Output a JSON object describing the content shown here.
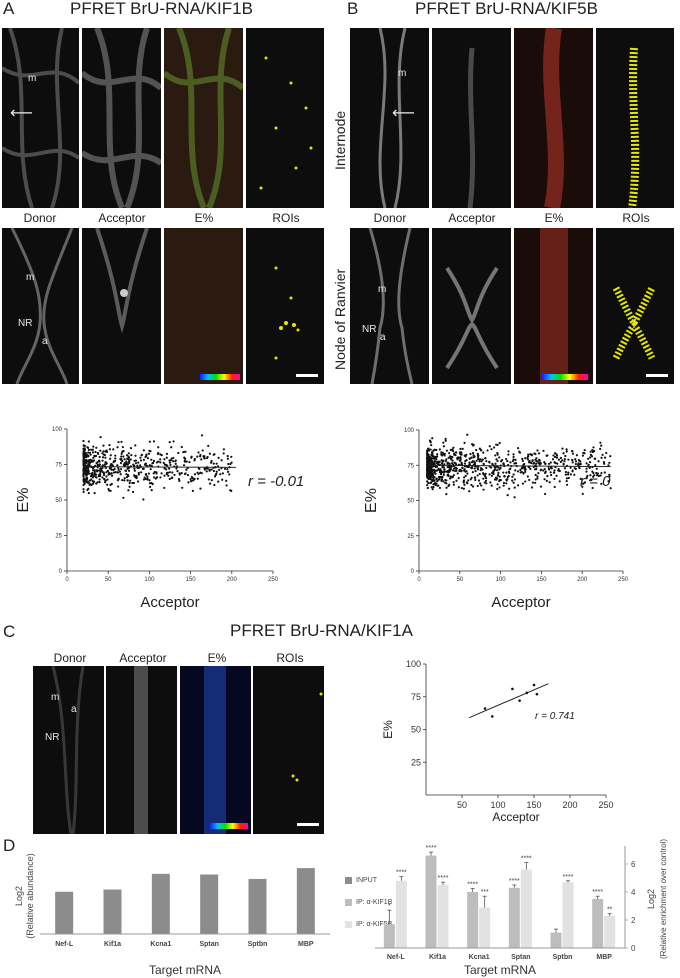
{
  "panels": {
    "A": {
      "letter": "A",
      "title": "PFRET BrU-RNA/KIF1B"
    },
    "B": {
      "letter": "B",
      "title": "PFRET BrU-RNA/KIF5B"
    },
    "C": {
      "letter": "C",
      "title": "PFRET BrU-RNA/KIF1A"
    },
    "D": {
      "letter": "D"
    }
  },
  "column_labels": [
    "Donor",
    "Acceptor",
    "E%",
    "ROIs"
  ],
  "row_labels": {
    "internode": "Internode",
    "node": "Node of Ranvier"
  },
  "annotations": {
    "m": "m",
    "nr": "NR",
    "a": "a"
  },
  "colors": {
    "bar_input": "#8c8c8c",
    "bar_kif1b": "#bdbdbd",
    "bar_kif5b": "#e2e2e2",
    "roi_yellow": "#e6e600",
    "efret_red": "#c0392b"
  },
  "chart_data": [
    {
      "id": "A-scatter",
      "type": "scatter",
      "xlabel": "Acceptor",
      "ylabel": "E%",
      "xlim": [
        0,
        250
      ],
      "ylim": [
        0,
        100
      ],
      "xticks": [
        0,
        50,
        100,
        150,
        200,
        250
      ],
      "yticks": [
        0,
        25,
        50,
        75,
        100
      ],
      "annotation": "r = -0.01",
      "trend": {
        "x": [
          20,
          205
        ],
        "y": [
          73.5,
          73
        ]
      },
      "cloud": {
        "x_range": [
          20,
          200
        ],
        "center_y": 73,
        "spread": 13,
        "count": 650
      }
    },
    {
      "id": "B-scatter",
      "type": "scatter",
      "xlabel": "Acceptor",
      "ylabel": "E%",
      "xlim": [
        0,
        250
      ],
      "ylim": [
        0,
        100
      ],
      "xticks": [
        0,
        50,
        100,
        150,
        200,
        250
      ],
      "yticks": [
        0,
        25,
        50,
        75,
        100
      ],
      "annotation": "r = 0",
      "trend": {
        "x": [
          10,
          235
        ],
        "y": [
          75,
          74
        ]
      },
      "cloud": {
        "x_range": [
          10,
          235
        ],
        "center_y": 74,
        "spread": 12,
        "count": 900
      }
    },
    {
      "id": "C-scatter",
      "type": "scatter",
      "xlabel": "Acceptor",
      "ylabel": "E%",
      "xlim": [
        0,
        250
      ],
      "ylim": [
        0,
        100
      ],
      "xticks": [
        50,
        100,
        150,
        200,
        250
      ],
      "yticks": [
        25,
        50,
        75,
        100
      ],
      "annotation": "r = 0.741",
      "x": [
        82,
        92,
        120,
        130,
        140,
        150,
        154
      ],
      "y": [
        66,
        60,
        81,
        72,
        78,
        84,
        77
      ],
      "trend": {
        "x": [
          60,
          170
        ],
        "y": [
          59,
          85
        ]
      }
    },
    {
      "id": "D-left",
      "type": "bar",
      "categories": [
        "Nef-L",
        "Kif1a",
        "Kcna1",
        "Sptan",
        "Sptbn",
        "MBP"
      ],
      "values": [
        13.2,
        13.9,
        18.8,
        18.6,
        17.2,
        20.6
      ],
      "ylim": [
        0,
        25
      ],
      "xlabel": "Target mRNA",
      "ylabel_line1": "Log2",
      "ylabel_line2": "(Relative abundance)"
    },
    {
      "id": "D-right",
      "type": "bar",
      "categories": [
        "Nef-L",
        "Kif1a",
        "Kcna1",
        "Sptan",
        "Sptbn",
        "MBP"
      ],
      "ylim": [
        0,
        7
      ],
      "yticks": [
        0,
        2,
        4,
        6
      ],
      "xlabel": "Target mRNA",
      "ylabel_line1": "Log2",
      "ylabel_line2": "(Relative enrichment over control)",
      "legend": [
        "INPUT",
        "IP: α-KIF1B",
        "IP: α-KIF5B"
      ],
      "series": [
        {
          "name": "IP: α-KIF1B",
          "values": [
            1.7,
            6.6,
            4.0,
            4.3,
            1.1,
            3.5
          ],
          "errors": [
            1.0,
            0.25,
            0.25,
            0.2,
            0.25,
            0.2
          ],
          "sig": [
            "*",
            "****",
            "****",
            "****",
            "",
            "****"
          ]
        },
        {
          "name": "IP: α-KIF5B",
          "values": [
            4.8,
            4.5,
            2.9,
            5.6,
            4.7,
            2.3
          ],
          "errors": [
            0.3,
            0.2,
            0.8,
            0.5,
            0.1,
            0.15
          ],
          "sig": [
            "****",
            "****",
            "***",
            "****",
            "****",
            "**"
          ]
        }
      ]
    }
  ]
}
